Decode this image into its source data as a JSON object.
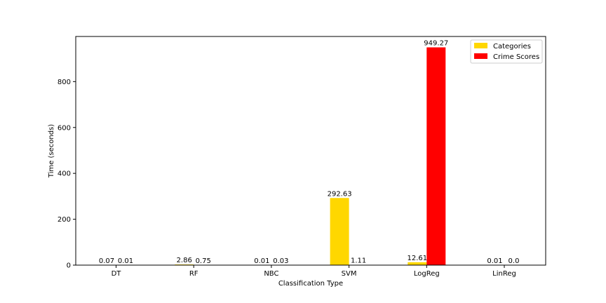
{
  "chart_data": {
    "type": "bar",
    "title": "",
    "xlabel": "Classification Type",
    "ylabel": "Time (seconds)",
    "categories": [
      "DT",
      "RF",
      "NBC",
      "SVM",
      "LogReg",
      "LinReg"
    ],
    "series": [
      {
        "name": "Categories",
        "color": "#FFD700",
        "values": [
          0.07,
          2.86,
          0.01,
          292.63,
          12.61,
          0.01
        ],
        "labels": [
          "0.07",
          "2.86",
          "0.01",
          "292.63",
          "12.61",
          "0.01"
        ]
      },
      {
        "name": "Crime Scores",
        "color": "#FF0000",
        "values": [
          0.01,
          0.75,
          0.03,
          1.11,
          949.27,
          0.0
        ],
        "labels": [
          "0.01",
          "0.75",
          "0.03",
          "1.11",
          "949.27",
          "0.0"
        ]
      }
    ],
    "ylim": [
      0,
      996.7
    ],
    "yticks": [
      0,
      200,
      400,
      600,
      800
    ],
    "grid": false,
    "legend_position": "top-right"
  }
}
